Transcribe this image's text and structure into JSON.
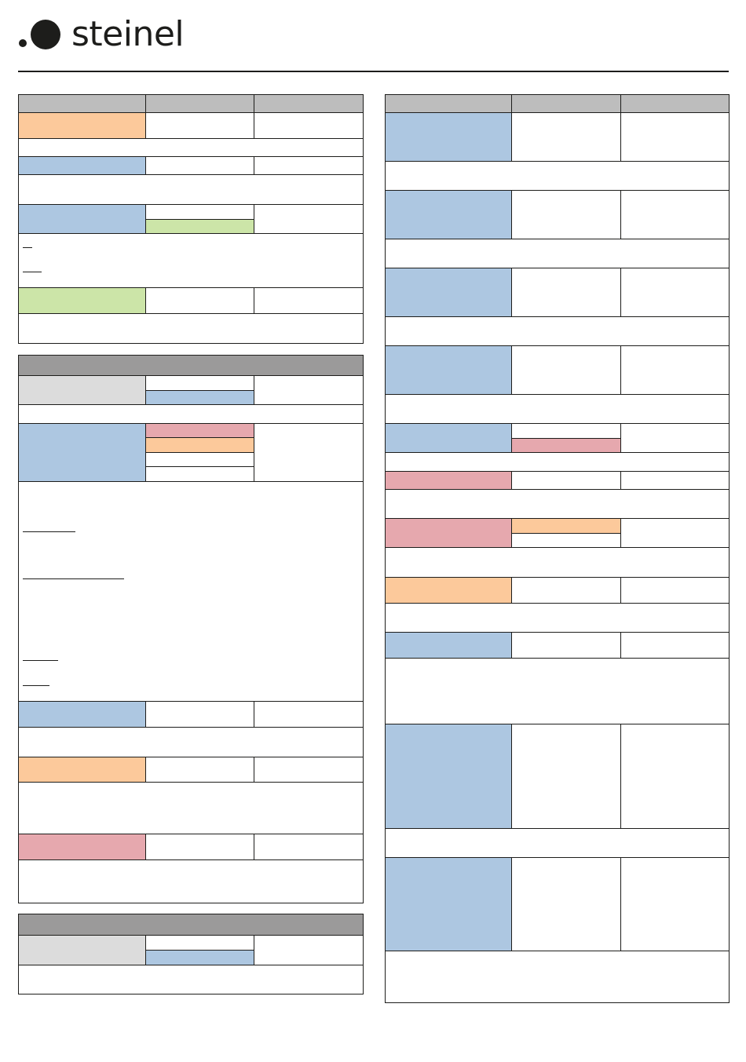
{
  "brand": {
    "name": "steinel",
    "colors": {
      "text": "#1d1d1b",
      "table_header": "#bdbdbd",
      "section_header": "#9b9a9a",
      "light_gray": "#dcdcdc",
      "orange": "#fcc99b",
      "blue": "#adc7e1",
      "green": "#cce5a8",
      "pink": "#e6a8ae"
    }
  },
  "icons": [
    "logo-dot-small",
    "logo-dot-large"
  ]
}
